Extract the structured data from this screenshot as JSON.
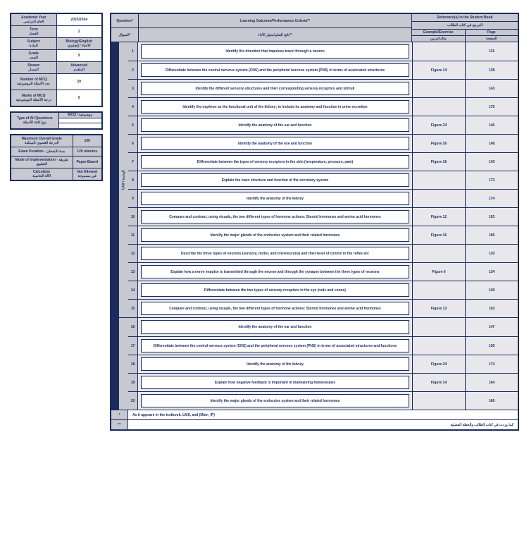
{
  "sidebar": {
    "table1": {
      "rows": [
        {
          "left_top": "Academic Year",
          "left_bot": "العام الدراسي",
          "right": "2023/2024",
          "bg_left": "gray",
          "bg_right": "white"
        },
        {
          "left_top": "Term",
          "left_bot": "الفصل",
          "right": "2",
          "bg_left": "gray",
          "bg_right": "white"
        },
        {
          "left_top": "Subject",
          "left_bot": "المادة",
          "right_top": "Biology/English",
          "right_bot": "الأحياء / إنجليزي",
          "bg_left": "gray",
          "bg_right": "gray"
        },
        {
          "left_top": "Grade",
          "left_bot": "الصف",
          "right": "9",
          "bg_left": "gray",
          "bg_right": "white"
        },
        {
          "left_top": "Stream",
          "left_bot": "المسار",
          "right_top": "Advanced",
          "right_bot": "المتقدم",
          "bg_left": "gray",
          "bg_right": "gray"
        },
        {
          "left_top": "Number of MCQ",
          "left_bot": "عدد الأسئلة الموضوعية",
          "right": "20",
          "bg_left": "gray",
          "bg_right": "white",
          "tall": true
        },
        {
          "left_top": "Marks of MCQ",
          "left_bot": "درجة الأسئلة الموضوعية",
          "right": "5",
          "bg_left": "gray",
          "bg_right": "white",
          "tall": true
        }
      ]
    },
    "table2": {
      "rows": [
        {
          "left_top": "Type of All Questions",
          "left_bot": "نوع كافة الأسئلة",
          "right_top": "MCQ / موضوعية",
          "right_mid": "",
          "right_bot": "",
          "bg_left": "gray",
          "bg_right": "white"
        }
      ]
    },
    "table3": {
      "rows": [
        {
          "left": "Maximum Overall Grade\nالدرجة القصوى الممكنة",
          "right": "100",
          "bg_left": "gray",
          "bg_right": "gray"
        },
        {
          "left": "Exam Duration - مدة الامتحان",
          "right": "120 minutes",
          "bg_left": "gray",
          "bg_right": "gray"
        },
        {
          "left": "Mode of Implementation - طريقة التطبيق",
          "right": "Paper-Based",
          "bg_left": "gray",
          "bg_right": "gray"
        },
        {
          "left_top": "Calculator",
          "left_bot": "الآلة الحاسبة",
          "right_top": "Not Allowed",
          "right_bot": "غير مسموحة",
          "bg_left": "gray",
          "bg_right": "gray"
        }
      ]
    }
  },
  "header": {
    "q_en": "Question*",
    "q_ar": "السؤال*",
    "outcome_en": "Learning Outcome/Performance Criteria**",
    "outcome_ar": "ناتج التعلم/معيار الأداء**",
    "ref_en": "Reference(s) in the Student Book",
    "ref_ar": "المرجع في كتاب الطالب",
    "example_en": "Example/Exercise",
    "example_ar": "مثال/تمرين",
    "page_en": "Page",
    "page_ar": "الصفحة"
  },
  "questions": [
    {
      "n": "1",
      "o": "Identify the direction that impulses travel through a neuron",
      "r": "",
      "p": "131"
    },
    {
      "n": "2",
      "o": "Differentiate between the central nervous system (CNS) and the peripheral nervous system (PNS) in terms of associated structures",
      "r": "Figure 14",
      "p": "138"
    },
    {
      "n": "3",
      "o": "Identify the different sensory structures and their corresponding sensory receptors and stimuli",
      "r": "",
      "p": "143"
    },
    {
      "n": "4",
      "o": "Identify the nephron as the functional unit of the kidney; to include its anatomy and function in urine excretion",
      "r": "",
      "p": "175"
    },
    {
      "n": "5",
      "o": "Identify the anatomy of the ear and function",
      "r": "Figure 24",
      "p": "146"
    },
    {
      "n": "6",
      "o": "Identify the anatomy of the eye and function",
      "r": "Figure 26",
      "p": "148"
    },
    {
      "n": "7",
      "o": "Differentiate between the types of sensory receptors in the skin (temperature, pressure, pain)",
      "r": "Figure 16",
      "p": "143"
    },
    {
      "n": "8",
      "o": "Explain the main structure and function of the excretory system",
      "r": "",
      "p": "173"
    },
    {
      "n": "9",
      "o": "Identify the anatomy of the kidney",
      "r": "",
      "p": "174"
    },
    {
      "n": "10",
      "o": "Compare and contrast, using visuals, the two different types of hormone actions: Steroid hormones and amino acid hormones",
      "r": "Figure 12",
      "p": "163"
    },
    {
      "n": "11",
      "o": "Identify the major glands of the endocrine system and their related hormones",
      "r": "Figure 16",
      "p": "166"
    },
    {
      "n": "12",
      "o": "Describe the three types of neurons (sensory, motor, and interneurons) and their level of control in the reflex arc",
      "r": "",
      "p": "130"
    },
    {
      "n": "13",
      "o": "Explain how a nerve impulse is transmitted through the neuron and through the synapse between the three types of neurons",
      "r": "Figure 6",
      "p": "134"
    },
    {
      "n": "14",
      "o": "Differentiate between the two types of sensory receptors in the eye (rods and cones)",
      "r": "",
      "p": "149"
    },
    {
      "n": "15",
      "o": "Compare and contrast, using visuals, the two different types of hormone actions: Steroid hormones and amino acid hormones",
      "r": "Figure 13",
      "p": "163"
    },
    {
      "n": "16",
      "o": "Identify the anatomy of the ear and function",
      "r": "",
      "p": "147"
    },
    {
      "n": "17",
      "o": "Differentiate between the central nervous system (CNS) and the peripheral nervous system (PNS) in terms of associated structures and functions",
      "r": "",
      "p": "136"
    },
    {
      "n": "18",
      "o": "Identify the anatomy of the kidney",
      "r": "Figure 24",
      "p": "174"
    },
    {
      "n": "19",
      "o": "Explain how negative feedback is important in maintaining homeostasis",
      "r": "Figure 14",
      "p": "164"
    },
    {
      "n": "20",
      "o": "Identify the major glands of the endocrine system and their related hormones",
      "r": "",
      "p": "166"
    }
  ],
  "unit_label": "Unit / الوحدة",
  "footer": {
    "a": {
      "bullet": "*",
      "text": "As it appears in the textbook, LMS, and (Main_IP)"
    },
    "b": {
      "bullet": "**",
      "text": "كما وردت في كتاب الطالب والخطة الفصلية"
    }
  },
  "split_after": 15,
  "colors": {
    "navy": "#1a2b5c",
    "gray_head": "#c8c8d0",
    "gray_row": "#e8e8ec",
    "white": "#ffffff"
  }
}
